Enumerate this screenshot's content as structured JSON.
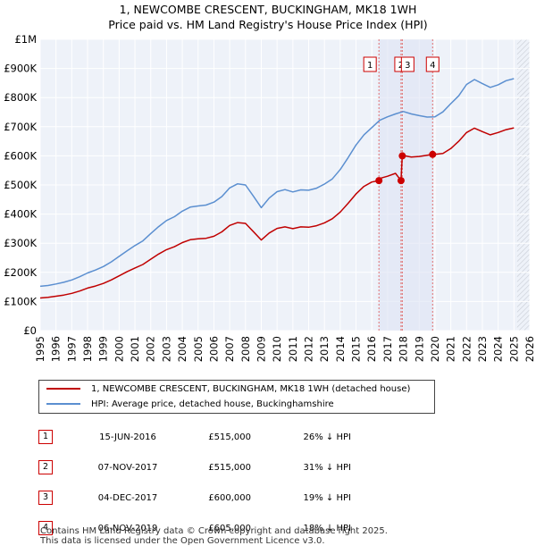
{
  "title": "1, NEWCOMBE CRESCENT, BUCKINGHAM, MK18 1WH",
  "subtitle": "Price paid vs. HM Land Registry's House Price Index (HPI)",
  "chart_data": {
    "type": "line",
    "xlim": [
      1995,
      2026
    ],
    "ylim": [
      0,
      1000000
    ],
    "yticks": [
      0,
      100000,
      200000,
      300000,
      400000,
      500000,
      600000,
      700000,
      800000,
      900000,
      1000000
    ],
    "ytick_labels": [
      "£0",
      "£100K",
      "£200K",
      "£300K",
      "£400K",
      "£500K",
      "£600K",
      "£700K",
      "£800K",
      "£900K",
      "£1M"
    ],
    "xticks": [
      1995,
      1996,
      1997,
      1998,
      1999,
      2000,
      2001,
      2002,
      2003,
      2004,
      2005,
      2006,
      2007,
      2008,
      2009,
      2010,
      2011,
      2012,
      2013,
      2014,
      2015,
      2016,
      2017,
      2018,
      2019,
      2020,
      2021,
      2022,
      2023,
      2024,
      2025,
      2026
    ],
    "grid": true,
    "data_end": 2025.2,
    "series": [
      {
        "name": "HPI: Average price, detached house, Buckinghamshire",
        "color": "#5b8fd0",
        "x": [
          1995,
          1995.5,
          1996,
          1996.5,
          1997,
          1997.5,
          1998,
          1998.5,
          1999,
          1999.5,
          2000,
          2000.5,
          2001,
          2001.5,
          2002,
          2002.5,
          2003,
          2003.5,
          2004,
          2004.5,
          2005,
          2005.5,
          2006,
          2006.5,
          2007,
          2007.5,
          2008,
          2008.5,
          2009,
          2009.5,
          2010,
          2010.5,
          2011,
          2011.5,
          2012,
          2012.5,
          2013,
          2013.5,
          2014,
          2014.5,
          2015,
          2015.5,
          2016,
          2016.5,
          2017,
          2017.5,
          2018,
          2018.5,
          2019,
          2019.5,
          2020,
          2020.5,
          2021,
          2021.5,
          2022,
          2022.5,
          2023,
          2023.5,
          2024,
          2024.5,
          2025
        ],
        "values": [
          152000,
          155000,
          160000,
          166000,
          174000,
          185000,
          198000,
          208000,
          220000,
          236000,
          255000,
          274000,
          292000,
          308000,
          333000,
          357000,
          378000,
          391000,
          410000,
          424000,
          428000,
          431000,
          441000,
          460000,
          490000,
          504000,
          500000,
          462000,
          422000,
          455000,
          477000,
          484000,
          476000,
          483000,
          482000,
          489000,
          503000,
          521000,
          553000,
          594000,
          637000,
          672000,
          697000,
          722000,
          734000,
          744000,
          752000,
          744000,
          738000,
          733000,
          734000,
          751000,
          779000,
          806000,
          845000,
          862000,
          848000,
          835000,
          844000,
          858000,
          865000
        ]
      },
      {
        "name": "1, NEWCOMBE CRESCENT, BUCKINGHAM, MK18 1WH (detached house)",
        "color": "#c00000",
        "x": [
          1995,
          1995.5,
          1996,
          1996.5,
          1997,
          1997.5,
          1998,
          1998.5,
          1999,
          1999.5,
          2000,
          2000.5,
          2001,
          2001.5,
          2002,
          2002.5,
          2003,
          2003.5,
          2004,
          2004.5,
          2005,
          2005.5,
          2006,
          2006.5,
          2007,
          2007.5,
          2008,
          2008.5,
          2009,
          2009.5,
          2010,
          2010.5,
          2011,
          2011.5,
          2012,
          2012.5,
          2013,
          2013.5,
          2014,
          2014.5,
          2015,
          2015.5,
          2016,
          2016.45,
          2016.6,
          2017,
          2017.5,
          2017.85,
          2017.93,
          2018,
          2018.5,
          2019,
          2019.5,
          2019.85,
          2020,
          2020.5,
          2021,
          2021.5,
          2022,
          2022.5,
          2023,
          2023.5,
          2024,
          2024.5,
          2025
        ],
        "values": [
          112000,
          114000,
          118000,
          122000,
          128000,
          136000,
          146000,
          153000,
          162000,
          174000,
          188000,
          202000,
          215000,
          227000,
          245000,
          263000,
          278000,
          288000,
          302000,
          312000,
          315000,
          317000,
          324000,
          339000,
          361000,
          371000,
          368000,
          340000,
          311000,
          335000,
          351000,
          356000,
          350000,
          356000,
          355000,
          360000,
          370000,
          384000,
          407000,
          437000,
          469000,
          495000,
          510000,
          515000,
          524000,
          530000,
          540000,
          515000,
          600000,
          601000,
          596000,
          598000,
          602000,
          605000,
          605000,
          608000,
          625000,
          650000,
          680000,
          695000,
          683000,
          672000,
          680000,
          690000,
          696000
        ]
      }
    ],
    "sales": [
      {
        "label": "1",
        "x": 2016.45,
        "price": 515000
      },
      {
        "label": "2",
        "x": 2017.85,
        "price": 515000
      },
      {
        "label": "3",
        "x": 2017.93,
        "price": 600000
      },
      {
        "label": "4",
        "x": 2019.85,
        "price": 605000
      }
    ]
  },
  "legend": {
    "property_label": "1, NEWCOMBE CRESCENT, BUCKINGHAM, MK18 1WH (detached house)",
    "hpi_label": "HPI: Average price, detached house, Buckinghamshire"
  },
  "transactions": [
    {
      "num": "1",
      "date": "15-JUN-2016",
      "price": "£515,000",
      "pct": "26% ↓ HPI"
    },
    {
      "num": "2",
      "date": "07-NOV-2017",
      "price": "£515,000",
      "pct": "31% ↓ HPI"
    },
    {
      "num": "3",
      "date": "04-DEC-2017",
      "price": "£600,000",
      "pct": "19% ↓ HPI"
    },
    {
      "num": "4",
      "date": "06-NOV-2019",
      "price": "£605,000",
      "pct": "18% ↓ HPI"
    }
  ],
  "footer": {
    "line1": "Contains HM Land Registry data © Crown copyright and database right 2025.",
    "line2": "This data is licensed under the Open Government Licence v3.0."
  }
}
